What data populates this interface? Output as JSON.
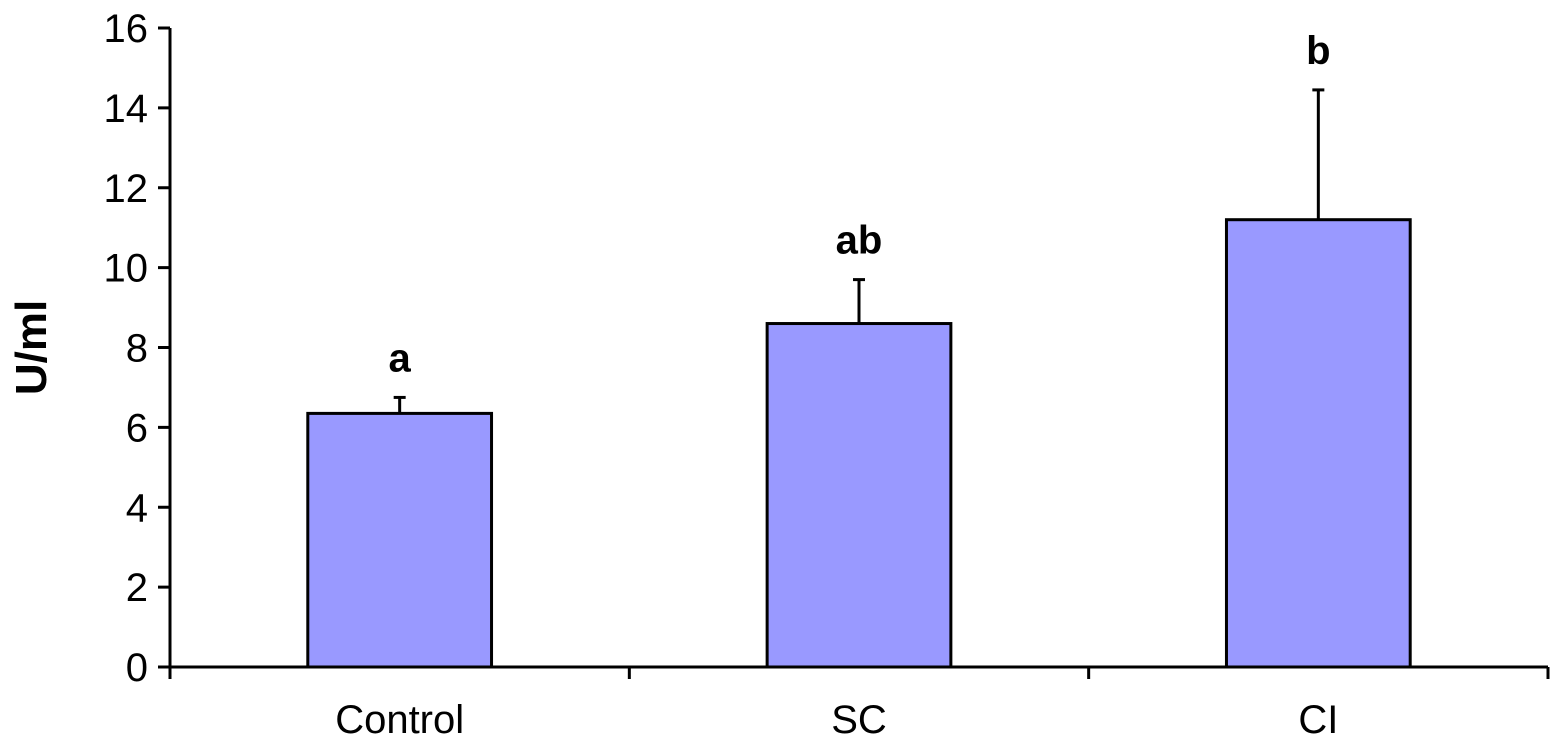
{
  "chart_data": {
    "type": "bar",
    "categories": [
      "Control",
      "SC",
      "CI"
    ],
    "values": [
      6.35,
      8.6,
      11.2
    ],
    "error_upper": [
      6.75,
      9.7,
      14.45
    ],
    "significance_labels": [
      "a",
      "ab",
      "b"
    ],
    "ylabel": "U/ml",
    "ylim": [
      0,
      16
    ],
    "yticks": [
      "0",
      "2",
      "4",
      "6",
      "8",
      "10",
      "12",
      "14",
      "16"
    ],
    "grid": false,
    "legend": "none",
    "colors": {
      "bar": "#9999ff",
      "axis": "#000000"
    }
  }
}
